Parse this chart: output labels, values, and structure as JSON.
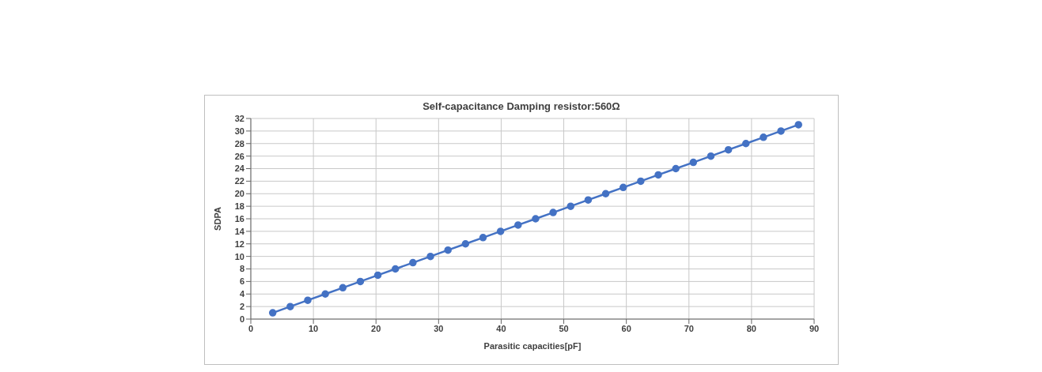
{
  "chart_data": {
    "type": "line",
    "title": "Self-capacitance Damping resistor:560Ω",
    "xlabel": "Parasitic capacities[pF]",
    "ylabel": "SDPA",
    "x": [
      3.5,
      6.3,
      9.1,
      11.9,
      14.7,
      17.5,
      20.3,
      23.1,
      25.9,
      28.7,
      31.5,
      34.3,
      37.1,
      39.9,
      42.7,
      45.5,
      48.3,
      51.1,
      53.9,
      56.7,
      59.5,
      62.3,
      65.1,
      67.9,
      70.7,
      73.5,
      76.3,
      79.1,
      81.9,
      84.7,
      87.5
    ],
    "series": [
      {
        "color": "#4472c4",
        "values": [
          1,
          2,
          3,
          4,
          5,
          6,
          7,
          8,
          9,
          10,
          11,
          12,
          13,
          14,
          15,
          16,
          17,
          18,
          19,
          20,
          21,
          22,
          23,
          24,
          25,
          26,
          27,
          28,
          29,
          30,
          31
        ]
      }
    ],
    "xlim": [
      0,
      90
    ],
    "xticks": [
      0,
      10,
      20,
      30,
      40,
      50,
      60,
      70,
      80,
      90
    ],
    "ylim": [
      0,
      32
    ],
    "yticks": [
      0,
      2,
      4,
      6,
      8,
      10,
      12,
      14,
      16,
      18,
      20,
      22,
      24,
      26,
      28,
      30,
      32
    ],
    "grid": true,
    "marker": "circle",
    "line_style": "solid",
    "legend": false
  }
}
